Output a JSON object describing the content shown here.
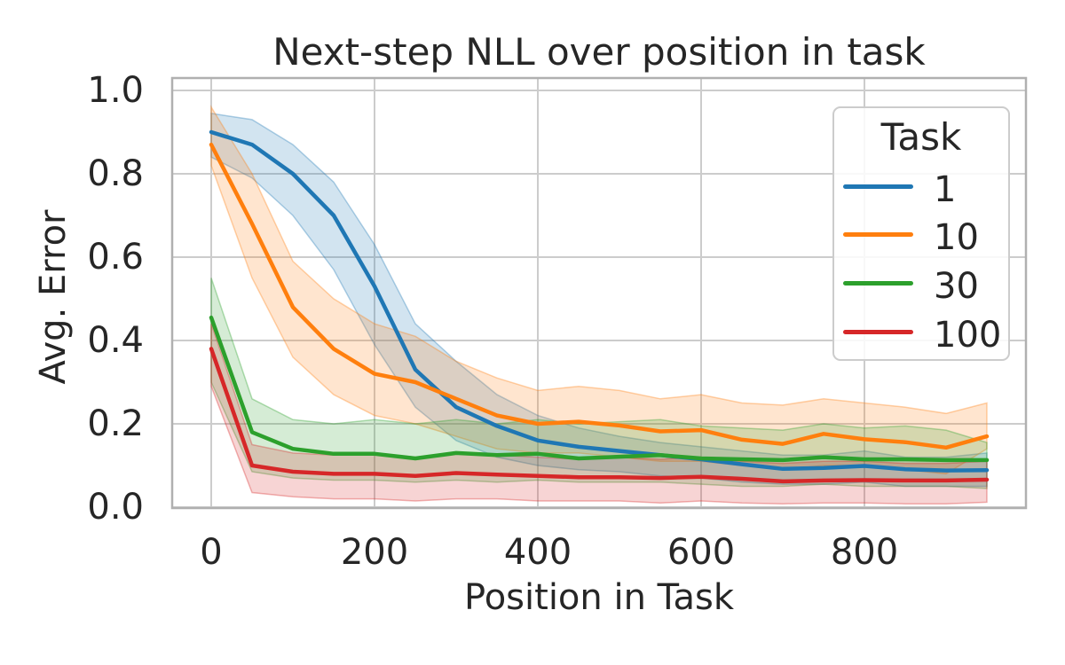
{
  "chart_data": {
    "type": "line",
    "title": "Next-step NLL over position in task",
    "xlabel": "Position in Task",
    "ylabel": "Avg. Error",
    "grid": true,
    "legend": {
      "title": "Task",
      "position": "upper right"
    },
    "x_ticks": [
      0,
      200,
      400,
      600,
      800
    ],
    "y_ticks": [
      0.0,
      0.2,
      0.4,
      0.6,
      0.8,
      1.0
    ],
    "xlim": [
      -48,
      998
    ],
    "ylim": [
      0,
      1.03
    ],
    "band_alpha": 0.2,
    "x": [
      0,
      50,
      100,
      150,
      200,
      250,
      300,
      350,
      400,
      450,
      500,
      550,
      600,
      650,
      700,
      750,
      800,
      850,
      900,
      950
    ],
    "series": [
      {
        "name": "1",
        "color": "#1f77b4",
        "values": [
          0.9,
          0.87,
          0.8,
          0.7,
          0.53,
          0.33,
          0.24,
          0.195,
          0.16,
          0.145,
          0.135,
          0.125,
          0.115,
          0.103,
          0.092,
          0.094,
          0.099,
          0.091,
          0.088,
          0.089
        ],
        "ci_upper": [
          0.945,
          0.93,
          0.87,
          0.78,
          0.63,
          0.44,
          0.35,
          0.27,
          0.22,
          0.19,
          0.17,
          0.155,
          0.145,
          0.135,
          0.125,
          0.125,
          0.135,
          0.12,
          0.12,
          0.13
        ],
        "ci_lower": [
          0.84,
          0.79,
          0.7,
          0.57,
          0.39,
          0.24,
          0.16,
          0.12,
          0.1,
          0.09,
          0.085,
          0.075,
          0.07,
          0.06,
          0.055,
          0.055,
          0.06,
          0.05,
          0.05,
          0.05
        ]
      },
      {
        "name": "10",
        "color": "#ff7f0e",
        "values": [
          0.87,
          0.68,
          0.48,
          0.38,
          0.32,
          0.3,
          0.26,
          0.22,
          0.2,
          0.205,
          0.196,
          0.182,
          0.185,
          0.162,
          0.152,
          0.176,
          0.163,
          0.156,
          0.143,
          0.17
        ],
        "ci_upper": [
          0.96,
          0.8,
          0.59,
          0.5,
          0.44,
          0.41,
          0.35,
          0.31,
          0.28,
          0.29,
          0.28,
          0.26,
          0.27,
          0.25,
          0.245,
          0.26,
          0.25,
          0.24,
          0.225,
          0.25
        ],
        "ci_lower": [
          0.82,
          0.55,
          0.36,
          0.27,
          0.22,
          0.2,
          0.17,
          0.14,
          0.13,
          0.13,
          0.12,
          0.11,
          0.11,
          0.1,
          0.09,
          0.1,
          0.1,
          0.09,
          0.08,
          0.14
        ]
      },
      {
        "name": "30",
        "color": "#2ca02c",
        "values": [
          0.455,
          0.18,
          0.14,
          0.128,
          0.128,
          0.117,
          0.13,
          0.125,
          0.128,
          0.117,
          0.121,
          0.125,
          0.117,
          0.115,
          0.113,
          0.12,
          0.115,
          0.115,
          0.113,
          0.113
        ],
        "ci_upper": [
          0.55,
          0.26,
          0.21,
          0.2,
          0.21,
          0.2,
          0.21,
          0.2,
          0.21,
          0.2,
          0.205,
          0.21,
          0.195,
          0.19,
          0.185,
          0.2,
          0.19,
          0.195,
          0.185,
          0.155
        ],
        "ci_lower": [
          0.3,
          0.085,
          0.07,
          0.065,
          0.065,
          0.06,
          0.065,
          0.06,
          0.065,
          0.06,
          0.06,
          0.06,
          0.055,
          0.05,
          0.05,
          0.055,
          0.05,
          0.05,
          0.05,
          0.045
        ]
      },
      {
        "name": "100",
        "color": "#d62728",
        "values": [
          0.38,
          0.1,
          0.085,
          0.08,
          0.08,
          0.075,
          0.082,
          0.078,
          0.075,
          0.072,
          0.072,
          0.07,
          0.073,
          0.068,
          0.062,
          0.064,
          0.065,
          0.064,
          0.064,
          0.066
        ],
        "ci_upper": [
          0.44,
          0.15,
          0.13,
          0.125,
          0.13,
          0.12,
          0.13,
          0.125,
          0.12,
          0.115,
          0.12,
          0.115,
          0.12,
          0.11,
          0.105,
          0.11,
          0.11,
          0.105,
          0.105,
          0.11
        ],
        "ci_lower": [
          0.29,
          0.035,
          0.025,
          0.02,
          0.02,
          0.015,
          0.02,
          0.02,
          0.015,
          0.015,
          0.015,
          0.01,
          0.015,
          0.01,
          0.008,
          0.01,
          0.01,
          0.008,
          0.008,
          0.012
        ]
      }
    ],
    "colors": {
      "text": "#262626",
      "grid": "#cccccc",
      "spine": "#b0b0b0",
      "background": "#ffffff"
    }
  }
}
